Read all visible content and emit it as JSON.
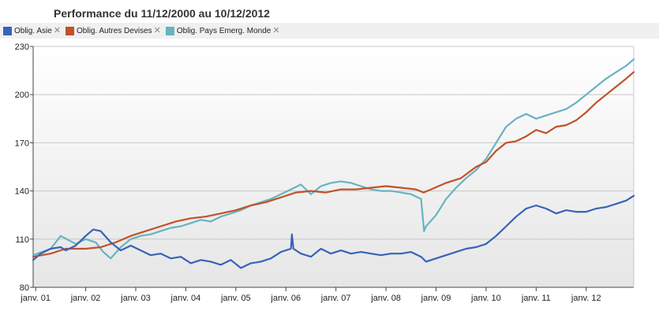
{
  "title": "Performance du 11/12/2000 au 10/12/2012",
  "legend": [
    {
      "label": "Oblig. Asie",
      "color": "#3763b8"
    },
    {
      "label": "Oblig. Autres Devises",
      "color": "#c0522a"
    },
    {
      "label": "Oblig. Pays Emerg. Monde",
      "color": "#68b3c0"
    }
  ],
  "chart_data": {
    "type": "line",
    "ylim": [
      80,
      230
    ],
    "xlim": [
      2000.95,
      2012.95
    ],
    "yticks": [
      80,
      110,
      140,
      170,
      200,
      230
    ],
    "xticks": [
      {
        "label": "janv. 01",
        "value": 2001
      },
      {
        "label": "janv. 02",
        "value": 2002
      },
      {
        "label": "janv. 03",
        "value": 2003
      },
      {
        "label": "janv. 04",
        "value": 2004
      },
      {
        "label": "janv. 05",
        "value": 2005
      },
      {
        "label": "janv. 06",
        "value": 2006
      },
      {
        "label": "janv. 07",
        "value": 2007
      },
      {
        "label": "janv. 08",
        "value": 2008
      },
      {
        "label": "janv. 09",
        "value": 2009
      },
      {
        "label": "janv. 10",
        "value": 2010
      },
      {
        "label": "janv. 11",
        "value": 2011
      },
      {
        "label": "janv. 12",
        "value": 2012
      }
    ],
    "grid": true,
    "legend_position": "top-left",
    "series": [
      {
        "name": "Oblig. Asie",
        "color": "#3763b8",
        "x": [
          2000.95,
          2001.1,
          2001.3,
          2001.5,
          2001.6,
          2001.8,
          2002.0,
          2002.15,
          2002.3,
          2002.5,
          2002.7,
          2002.9,
          2003.1,
          2003.3,
          2003.5,
          2003.7,
          2003.9,
          2004.1,
          2004.3,
          2004.5,
          2004.7,
          2004.9,
          2005.1,
          2005.3,
          2005.5,
          2005.7,
          2005.9,
          2006.1,
          2006.12,
          2006.15,
          2006.3,
          2006.5,
          2006.7,
          2006.9,
          2007.1,
          2007.3,
          2007.5,
          2007.7,
          2007.9,
          2008.1,
          2008.3,
          2008.5,
          2008.7,
          2008.8,
          2008.9,
          2009.0,
          2009.2,
          2009.4,
          2009.6,
          2009.8,
          2010.0,
          2010.2,
          2010.4,
          2010.6,
          2010.8,
          2011.0,
          2011.2,
          2011.4,
          2011.6,
          2011.8,
          2012.0,
          2012.2,
          2012.4,
          2012.6,
          2012.8,
          2012.95
        ],
        "values": [
          97,
          101,
          104,
          105,
          103,
          106,
          112,
          116,
          115,
          108,
          103,
          106,
          103,
          100,
          101,
          98,
          99,
          95,
          97,
          96,
          94,
          97,
          92,
          95,
          96,
          98,
          102,
          104,
          113,
          104,
          101,
          99,
          104,
          101,
          103,
          101,
          102,
          101,
          100,
          101,
          101,
          102,
          99,
          96,
          97,
          98,
          100,
          102,
          104,
          105,
          107,
          112,
          118,
          124,
          129,
          131,
          129,
          126,
          128,
          127,
          127,
          129,
          130,
          132,
          134,
          137
        ]
      },
      {
        "name": "Oblig. Autres Devises",
        "color": "#c0522a",
        "x": [
          2000.95,
          2001.3,
          2001.6,
          2002.0,
          2002.3,
          2002.6,
          2002.9,
          2003.2,
          2003.5,
          2003.8,
          2004.1,
          2004.4,
          2004.7,
          2005.0,
          2005.3,
          2005.6,
          2005.9,
          2006.2,
          2006.5,
          2006.8,
          2007.1,
          2007.4,
          2007.7,
          2008.0,
          2008.3,
          2008.6,
          2008.75,
          2008.9,
          2009.2,
          2009.5,
          2009.8,
          2010.0,
          2010.2,
          2010.4,
          2010.6,
          2010.8,
          2011.0,
          2011.2,
          2011.4,
          2011.6,
          2011.8,
          2012.0,
          2012.2,
          2012.4,
          2012.6,
          2012.8,
          2012.95
        ],
        "values": [
          99,
          101,
          104,
          104,
          105,
          108,
          112,
          115,
          118,
          121,
          123,
          124,
          126,
          128,
          131,
          133,
          136,
          139,
          140,
          139,
          141,
          141,
          142,
          143,
          142,
          141,
          139,
          141,
          145,
          148,
          155,
          158,
          165,
          170,
          171,
          174,
          178,
          176,
          180,
          181,
          184,
          189,
          195,
          200,
          205,
          210,
          214
        ]
      },
      {
        "name": "Oblig. Pays Emerg. Monde",
        "color": "#68b3c0",
        "x": [
          2000.95,
          2001.3,
          2001.5,
          2001.8,
          2002.0,
          2002.2,
          2002.35,
          2002.5,
          2002.7,
          2002.9,
          2003.1,
          2003.3,
          2003.5,
          2003.7,
          2003.9,
          2004.1,
          2004.3,
          2004.5,
          2004.7,
          2004.9,
          2005.1,
          2005.3,
          2005.5,
          2005.7,
          2005.9,
          2006.1,
          2006.3,
          2006.5,
          2006.7,
          2006.9,
          2007.1,
          2007.3,
          2007.5,
          2007.7,
          2007.9,
          2008.1,
          2008.3,
          2008.5,
          2008.7,
          2008.76,
          2008.8,
          2009.0,
          2009.2,
          2009.4,
          2009.6,
          2009.8,
          2010.0,
          2010.2,
          2010.4,
          2010.6,
          2010.8,
          2011.0,
          2011.2,
          2011.4,
          2011.6,
          2011.8,
          2012.0,
          2012.2,
          2012.4,
          2012.6,
          2012.8,
          2012.95
        ],
        "values": [
          100,
          104,
          112,
          107,
          110,
          108,
          102,
          98,
          105,
          110,
          112,
          113,
          115,
          117,
          118,
          120,
          122,
          121,
          124,
          126,
          128,
          131,
          133,
          135,
          138,
          141,
          144,
          138,
          143,
          145,
          146,
          145,
          143,
          141,
          140,
          140,
          139,
          138,
          135,
          115,
          118,
          125,
          135,
          142,
          148,
          153,
          160,
          170,
          180,
          185,
          188,
          185,
          187,
          189,
          191,
          195,
          200,
          205,
          210,
          214,
          218,
          222
        ]
      }
    ]
  }
}
